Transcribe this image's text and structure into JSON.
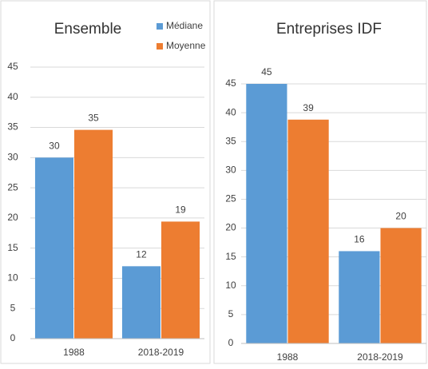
{
  "chart_data": [
    {
      "type": "bar",
      "title": "Ensemble",
      "categories": [
        "1988",
        "2018-2019"
      ],
      "series": [
        {
          "name": "Médiane",
          "color": "#5b9bd5",
          "values": [
            30,
            12
          ]
        },
        {
          "name": "Moyenne",
          "color": "#ed7d31",
          "values": [
            34.6,
            19.4
          ],
          "value_labels": [
            "35",
            "19"
          ]
        }
      ],
      "ylim": [
        0,
        45
      ],
      "yticks": [
        0,
        5,
        10,
        15,
        20,
        25,
        30,
        35,
        40,
        45
      ],
      "grid": true,
      "legend": "top-right"
    },
    {
      "type": "bar",
      "title": "Entreprises IDF",
      "categories": [
        "1988",
        "2018-2019"
      ],
      "series": [
        {
          "color": "#5b9bd5",
          "values": [
            45,
            16
          ]
        },
        {
          "color": "#ed7d31",
          "values": [
            38.8,
            20
          ],
          "value_labels": [
            "39",
            "20"
          ]
        }
      ],
      "ylim": [
        0,
        45
      ],
      "yticks": [
        0,
        5,
        10,
        15,
        20,
        25,
        30,
        35,
        40,
        45
      ],
      "grid": true
    }
  ]
}
